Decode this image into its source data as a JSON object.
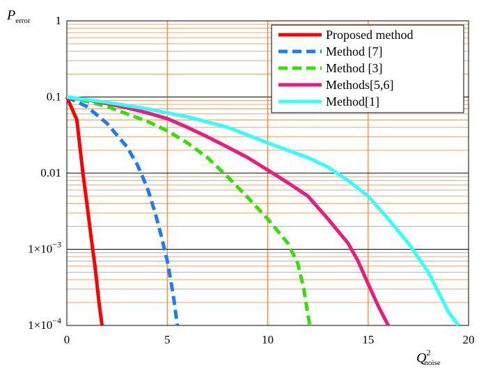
{
  "chart_data": {
    "type": "line",
    "title": "",
    "ylabel": {
      "main": "P",
      "sub": "error"
    },
    "xlabel": {
      "main": "Q",
      "sup": "2",
      "sub": "noise"
    },
    "xlim": [
      0,
      20
    ],
    "ylim": [
      0.0001,
      1
    ],
    "yscale": "log",
    "grid": true,
    "legend_position": "top-right",
    "x_ticks": [
      {
        "v": 0,
        "label": "0"
      },
      {
        "v": 5,
        "label": "5"
      },
      {
        "v": 10,
        "label": "10"
      },
      {
        "v": 15,
        "label": "15"
      },
      {
        "v": 20,
        "label": "20"
      }
    ],
    "y_ticks": [
      {
        "v": 1,
        "label": "1"
      },
      {
        "v": 0.1,
        "label": "0.1"
      },
      {
        "v": 0.01,
        "label": "0.01"
      },
      {
        "v": 0.001,
        "label": "1×10",
        "exp": "−3"
      },
      {
        "v": 0.0001,
        "label": "1×10",
        "exp": "−4"
      }
    ],
    "series": [
      {
        "name": "Proposed method",
        "color": "#ff0000",
        "dash": "solid",
        "x": [
          0,
          0.5,
          0.8,
          1.0,
          1.2,
          1.4,
          1.6,
          1.75
        ],
        "y": [
          0.1,
          0.05,
          0.01,
          0.004,
          0.0015,
          0.0006,
          0.0002,
          0.0001
        ]
      },
      {
        "name": "Method [7]",
        "color": "#1a7bff",
        "dash": "dashed",
        "x": [
          0,
          1,
          2,
          3,
          3.5,
          4,
          4.4,
          4.7,
          5,
          5.3,
          5.5
        ],
        "y": [
          0.1,
          0.075,
          0.045,
          0.022,
          0.013,
          0.0065,
          0.003,
          0.0015,
          0.0007,
          0.00025,
          0.0001
        ]
      },
      {
        "name": "Method [3]",
        "color": "#33e000",
        "dash": "dashed",
        "x": [
          0,
          1,
          2,
          3,
          4,
          5,
          6,
          7,
          8,
          9,
          10,
          11,
          11.5,
          11.8,
          12,
          12.1
        ],
        "y": [
          0.1,
          0.088,
          0.075,
          0.06,
          0.048,
          0.036,
          0.025,
          0.016,
          0.009,
          0.0048,
          0.0025,
          0.0012,
          0.00065,
          0.0003,
          0.00014,
          0.0001
        ]
      },
      {
        "name": "Methods[5,6]",
        "color": "#ee1a7a",
        "dash": "solid",
        "x": [
          0,
          1,
          2,
          3,
          4,
          5,
          6,
          7,
          8,
          9,
          10,
          11,
          12,
          13,
          14,
          14.5,
          15,
          15.5,
          16
        ],
        "y": [
          0.1,
          0.092,
          0.082,
          0.072,
          0.062,
          0.052,
          0.04,
          0.03,
          0.022,
          0.016,
          0.011,
          0.0075,
          0.005,
          0.0025,
          0.0012,
          0.0007,
          0.00035,
          0.00018,
          0.0001
        ]
      },
      {
        "name": "Method[1]",
        "color": "#33ffff",
        "dash": "solid",
        "x": [
          0,
          2,
          4,
          6,
          8,
          10,
          12,
          13,
          14,
          15,
          16,
          17,
          18,
          19,
          19.5
        ],
        "y": [
          0.1,
          0.085,
          0.07,
          0.055,
          0.04,
          0.025,
          0.016,
          0.012,
          0.008,
          0.005,
          0.0025,
          0.0012,
          0.0005,
          0.00015,
          0.0001
        ]
      }
    ]
  }
}
